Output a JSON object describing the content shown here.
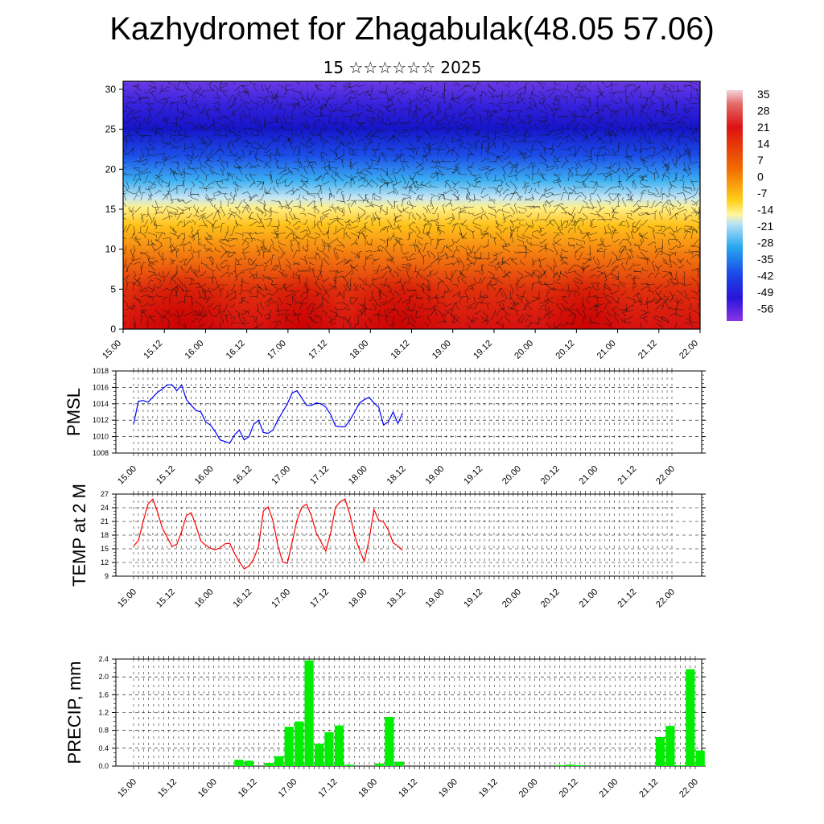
{
  "title": "Kazhydromet for Zhagabulak(48.05 57.06)",
  "subtitle": "15 ☆☆☆☆☆☆ 2025",
  "colors": {
    "pmsl": "#0000ff",
    "temp": "#ff0000",
    "precip": "#00ee00"
  },
  "chart_data": [
    {
      "type": "heatmap",
      "panel": "cross-section",
      "y_ticks": [
        "0",
        "5",
        "10",
        "15",
        "20",
        "25",
        "30"
      ],
      "ylim": [
        0,
        31
      ],
      "x_ticks": [
        "15.00",
        "15.12",
        "16.00",
        "16.12",
        "17.00",
        "17.12",
        "18.00",
        "18.12",
        "19.00",
        "19.12",
        "20.00",
        "20.12",
        "21.00",
        "21.12",
        "22.00"
      ],
      "colorbar_labels": [
        "35",
        "28",
        "21",
        "14",
        "7",
        "0",
        "-7",
        "-14",
        "-21",
        "-28",
        "-35",
        "-42",
        "-49",
        "-56"
      ]
    },
    {
      "type": "line",
      "ylabel": "PMSL",
      "ylim": [
        1008,
        1018
      ],
      "y_ticks": [
        "1018",
        "1016",
        "1014",
        "1012",
        "1010",
        "1008"
      ],
      "x_ticks": [
        "15.00",
        "15.12",
        "16.00",
        "16.12",
        "17.00",
        "17.12",
        "18.00",
        "18.12",
        "19.00",
        "19.12",
        "20.00",
        "20.12",
        "21.00",
        "21.12",
        "22.00"
      ],
      "x_step_hours": 3,
      "values": [
        1011.5,
        1014.3,
        1014.4,
        1014.2,
        1014.8,
        1015.4,
        1015.8,
        1016.3,
        1016.3,
        1015.6,
        1016.3,
        1014.5,
        1013.8,
        1013.2,
        1013.0,
        1011.8,
        1011.4,
        1010.6,
        1009.6,
        1009.4,
        1009.2,
        1010.2,
        1010.8,
        1009.6,
        1010.0,
        1011.5,
        1012.0,
        1010.5,
        1010.4,
        1010.8,
        1012.0,
        1013.0,
        1014.0,
        1015.3,
        1015.6,
        1014.7,
        1013.8,
        1013.8,
        1014.1,
        1014.0,
        1013.6,
        1012.7,
        1011.3,
        1011.2,
        1011.2,
        1012.0,
        1013.0,
        1014.1,
        1014.5,
        1014.8,
        1014.1,
        1013.6,
        1011.4,
        1011.8,
        1013.0,
        1011.6,
        1012.9
      ]
    },
    {
      "type": "line",
      "ylabel": "TEMP at 2 M",
      "ylim": [
        9,
        27
      ],
      "y_ticks": [
        "27",
        "24",
        "21",
        "18",
        "15",
        "12",
        "9"
      ],
      "x_ticks": [
        "15.00",
        "15.12",
        "16.00",
        "16.12",
        "17.00",
        "17.12",
        "18.00",
        "18.12",
        "19.00",
        "19.12",
        "20.00",
        "20.12",
        "21.00",
        "21.12",
        "22.00"
      ],
      "x_step_hours": 3,
      "values": [
        15.6,
        16.8,
        21.0,
        24.8,
        25.9,
        23.0,
        19.5,
        17.5,
        15.5,
        16.0,
        18.8,
        22.3,
        22.9,
        20.0,
        16.7,
        15.8,
        15.1,
        14.8,
        15.2,
        16.1,
        16.2,
        14.0,
        12.2,
        10.6,
        11.2,
        12.8,
        15.5,
        23.3,
        24.2,
        21.2,
        15.8,
        12.1,
        11.8,
        16.5,
        21.3,
        24.1,
        24.8,
        22.2,
        18.5,
        16.5,
        14.5,
        18.5,
        24.1,
        25.3,
        25.9,
        22.5,
        17.8,
        14.8,
        12.2,
        17.0,
        23.6,
        21.3,
        20.9,
        19.1,
        16.3,
        15.6,
        14.7
      ]
    },
    {
      "type": "bar",
      "ylabel": "PRECIP, mm",
      "ylim": [
        0,
        2.4
      ],
      "y_ticks": [
        "2.4",
        "2.0",
        "1.6",
        "1.2",
        "0.8",
        "0.4",
        "0.0"
      ],
      "x_ticks": [
        "15.00",
        "15.12",
        "16.00",
        "16.12",
        "17.00",
        "17.12",
        "18.00",
        "18.12",
        "19.00",
        "19.12",
        "20.00",
        "20.12",
        "21.00",
        "21.12",
        "22.00"
      ],
      "x_step_hours": 3,
      "values": [
        0,
        0,
        0,
        0,
        0,
        0,
        0,
        0,
        0,
        0,
        0.14,
        0.12,
        0,
        0.07,
        0.22,
        0.88,
        1.0,
        2.37,
        0.5,
        0.76,
        0.91,
        0.03,
        0,
        0,
        0.06,
        1.1,
        0.1,
        0,
        0,
        0,
        0,
        0,
        0,
        0,
        0,
        0,
        0,
        0,
        0,
        0,
        0,
        0,
        0.02,
        0.03,
        0.02,
        0,
        0,
        0,
        0,
        0,
        0,
        0,
        0.65,
        0.9,
        0.02,
        2.17,
        0.35
      ]
    }
  ]
}
